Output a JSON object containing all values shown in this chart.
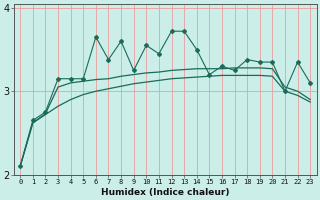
{
  "title": "",
  "xlabel": "Humidex (Indice chaleur)",
  "ylabel": "",
  "background_color": "#cceee8",
  "grid_color": "#e8a0a0",
  "line_color": "#1a6b5a",
  "x_values": [
    0,
    1,
    2,
    3,
    4,
    5,
    6,
    7,
    8,
    9,
    10,
    11,
    12,
    13,
    14,
    15,
    16,
    17,
    18,
    19,
    20,
    21,
    22,
    23
  ],
  "jagged_line": [
    2.1,
    2.65,
    2.75,
    3.15,
    3.15,
    3.15,
    3.65,
    3.38,
    3.6,
    3.25,
    3.55,
    3.45,
    3.72,
    3.72,
    3.5,
    3.2,
    3.3,
    3.25,
    3.38,
    3.35,
    3.35,
    3.0,
    3.35,
    3.1
  ],
  "smooth_upper": [
    2.1,
    2.62,
    2.73,
    3.05,
    3.1,
    3.12,
    3.14,
    3.15,
    3.18,
    3.2,
    3.22,
    3.23,
    3.25,
    3.26,
    3.27,
    3.27,
    3.27,
    3.28,
    3.28,
    3.28,
    3.27,
    3.05,
    3.0,
    2.9
  ],
  "smooth_lower": [
    2.1,
    2.62,
    2.72,
    2.82,
    2.9,
    2.96,
    3.0,
    3.03,
    3.06,
    3.09,
    3.11,
    3.13,
    3.15,
    3.16,
    3.17,
    3.18,
    3.19,
    3.19,
    3.19,
    3.19,
    3.18,
    3.0,
    2.95,
    2.87
  ],
  "ylim": [
    2.0,
    4.05
  ],
  "yticks": [
    2,
    3,
    4
  ],
  "xtick_labels": [
    "0",
    "1",
    "2",
    "3",
    "4",
    "5",
    "6",
    "7",
    "8",
    "9",
    "10",
    "11",
    "12",
    "13",
    "14",
    "15",
    "16",
    "17",
    "18",
    "19",
    "20",
    "21",
    "22",
    "23"
  ]
}
